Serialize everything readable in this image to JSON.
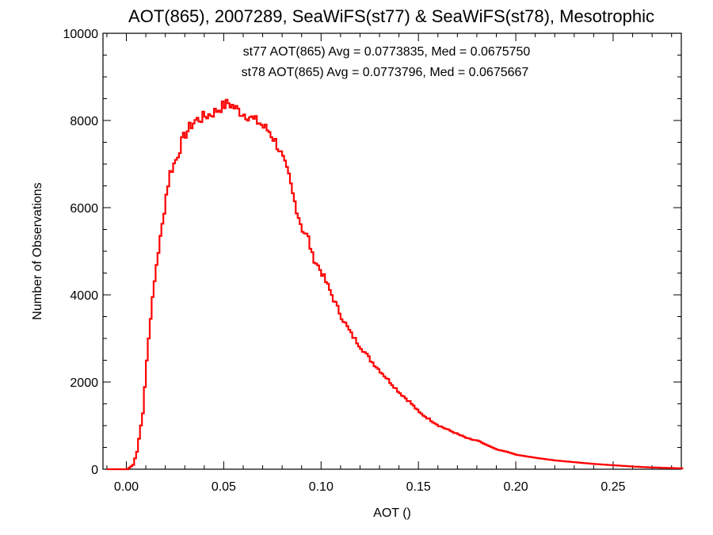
{
  "chart_data": {
    "type": "histogram",
    "title": "AOT(865), 2007289, SeaWiFS(st77) & SeaWiFS(st78), Mesotrophic",
    "xlabel": "AOT ()",
    "ylabel": "Number of Observations",
    "xlim": [
      -0.012,
      0.285
    ],
    "ylim": [
      0,
      10000
    ],
    "xticks": [
      0.0,
      0.05,
      0.1,
      0.15,
      0.2,
      0.25
    ],
    "xtick_labels": [
      "0.00",
      "0.05",
      "0.10",
      "0.15",
      "0.20",
      "0.25"
    ],
    "yticks": [
      0,
      2000,
      4000,
      6000,
      8000,
      10000
    ],
    "ytick_labels": [
      "0",
      "2000",
      "4000",
      "6000",
      "8000",
      "10000"
    ],
    "grid": false,
    "annotations": [
      {
        "text": "st77 AOT(865) Avg = 0.0773835, Med = 0.0675750",
        "color": "#000000"
      },
      {
        "text": "st78 AOT(865) Avg = 0.0773796, Med = 0.0675667",
        "color": "#ff0000"
      }
    ],
    "series": [
      {
        "color": "#ff0000",
        "x": [
          -0.01,
          0.0,
          0.003,
          0.005,
          0.008,
          0.01,
          0.012,
          0.015,
          0.018,
          0.02,
          0.022,
          0.025,
          0.028,
          0.03,
          0.033,
          0.035,
          0.038,
          0.04,
          0.043,
          0.045,
          0.048,
          0.05,
          0.052,
          0.055,
          0.058,
          0.06,
          0.063,
          0.065,
          0.068,
          0.07,
          0.073,
          0.075,
          0.078,
          0.08,
          0.083,
          0.085,
          0.088,
          0.09,
          0.093,
          0.095,
          0.1,
          0.105,
          0.11,
          0.115,
          0.12,
          0.125,
          0.13,
          0.135,
          0.14,
          0.145,
          0.15,
          0.155,
          0.16,
          0.165,
          0.17,
          0.175,
          0.18,
          0.185,
          0.19,
          0.195,
          0.2,
          0.21,
          0.22,
          0.23,
          0.24,
          0.25,
          0.26,
          0.27,
          0.285
        ],
        "values": [
          0,
          0,
          100,
          400,
          1300,
          2500,
          3500,
          4700,
          5600,
          6300,
          6800,
          7100,
          7500,
          7700,
          7900,
          8000,
          8050,
          8100,
          8150,
          8200,
          8300,
          8350,
          8400,
          8300,
          8200,
          8150,
          8100,
          8000,
          7950,
          7850,
          7750,
          7600,
          7350,
          7100,
          6700,
          6300,
          5800,
          5500,
          5300,
          4900,
          4500,
          4000,
          3500,
          3100,
          2800,
          2500,
          2250,
          2000,
          1750,
          1550,
          1300,
          1150,
          1000,
          900,
          800,
          700,
          650,
          550,
          450,
          400,
          330,
          260,
          200,
          160,
          120,
          90,
          60,
          40,
          20
        ]
      }
    ]
  }
}
